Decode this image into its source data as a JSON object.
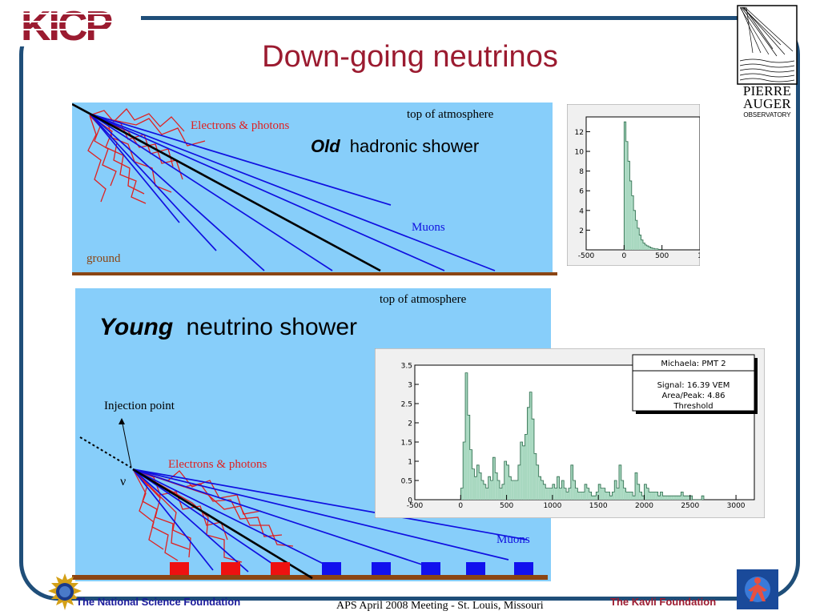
{
  "slide": {
    "title": "Down-going neutrinos",
    "logo_kicp": "KICP",
    "logo_auger_line1": "PIERRE",
    "logo_auger_line2": "AUGER",
    "logo_auger_line3": "OBSERVATORY"
  },
  "top_diagram": {
    "label_top": "top of atmosphere",
    "label_em": "Electrons & photons",
    "label_muons": "Muons",
    "label_ground": "ground",
    "caption_emph": "Old",
    "caption_rest": "hadronic shower"
  },
  "bottom_diagram": {
    "label_top": "top of atmosphere",
    "label_em": "Electrons & photons",
    "label_muons": "Muons",
    "label_injection": "Injection point",
    "label_nu": "ν",
    "caption_emph": "Young",
    "caption_rest": "neutrino shower"
  },
  "small_histogram": {
    "y_ticks": [
      "12",
      "10",
      "8",
      "6",
      "4",
      "2"
    ],
    "x_ticks": [
      "-500",
      "0",
      "500",
      "1"
    ]
  },
  "big_histogram": {
    "y_ticks": [
      "3.5",
      "3",
      "2.5",
      "2",
      "1.5",
      "1",
      "0.5",
      "0"
    ],
    "x_ticks": [
      "-500",
      "0",
      "500",
      "1000",
      "1500",
      "2000",
      "2500",
      "3000"
    ],
    "box_title": "Michaela: PMT 2",
    "box_line1": "Signal: 16.39 VEM",
    "box_line2": "Area/Peak: 4.86",
    "box_line3": "Threshold"
  },
  "footer": {
    "left": "The National Science Foundation",
    "middle": "APS April 2008 Meeting - St. Louis, Missouri",
    "right": "The Kavli Foundation"
  },
  "colors": {
    "title": "#9b1b30",
    "frame": "#1f4e79",
    "sky": "#87cefa",
    "ground": "#8b4513",
    "muon": "#1010e0",
    "em": "#e02020",
    "hist_fill": "#a8d8c0"
  },
  "chart_data": [
    {
      "type": "bar",
      "title": "",
      "xlabel": "",
      "ylabel": "",
      "xlim": [
        -500,
        1000
      ],
      "ylim": [
        0,
        13.5
      ],
      "bin_start": 0,
      "bin_width": 25,
      "values": [
        13,
        11,
        9,
        7,
        5.5,
        4,
        3,
        2.2,
        1.5,
        1,
        0.7,
        0.5,
        0.4,
        0.3,
        0.2,
        0.15,
        0.1,
        0.1,
        0.05,
        0.05
      ]
    },
    {
      "type": "bar",
      "title": "",
      "xlabel": "",
      "ylabel": "",
      "xlim": [
        -500,
        3200
      ],
      "ylim": [
        0,
        3.5
      ],
      "bin_start": 0,
      "bin_width": 25,
      "values": [
        0.3,
        1.5,
        3.3,
        2.2,
        1.3,
        0.8,
        0.6,
        0.9,
        0.7,
        0.5,
        0.4,
        0.3,
        0.6,
        0.5,
        1.1,
        0.7,
        0.5,
        0.3,
        0.4,
        1.0,
        0.9,
        0.6,
        0.5,
        0.5,
        0.5,
        0.9,
        1.5,
        1.4,
        1.7,
        2.4,
        2.8,
        2.1,
        1.2,
        0.9,
        0.6,
        0.5,
        0.4,
        0.3,
        0.3,
        0.3,
        0.4,
        0.3,
        0.6,
        0.3,
        0.5,
        0.3,
        0.2,
        0.3,
        0.9,
        0.5,
        0.3,
        0.2,
        0.2,
        0.2,
        0.4,
        0.3,
        0.2,
        0.1,
        0.1,
        0.2,
        0.4,
        0.3,
        0.3,
        0.2,
        0.2,
        0.1,
        0.2,
        0.5,
        0.3,
        0.9,
        0.5,
        0.3,
        0.2,
        0.2,
        0.2,
        0.1,
        0.7,
        0.4,
        0.2,
        0.1,
        0.4,
        0.3,
        0.2,
        0.2,
        0.2,
        0.2,
        0.1,
        0.2,
        0.1,
        0.1,
        0.1,
        0.1,
        0.1,
        0.1,
        0.1,
        0.1,
        0.2,
        0.1,
        0.1,
        0.1,
        0.1,
        0,
        0,
        0,
        0,
        0.1
      ]
    }
  ]
}
